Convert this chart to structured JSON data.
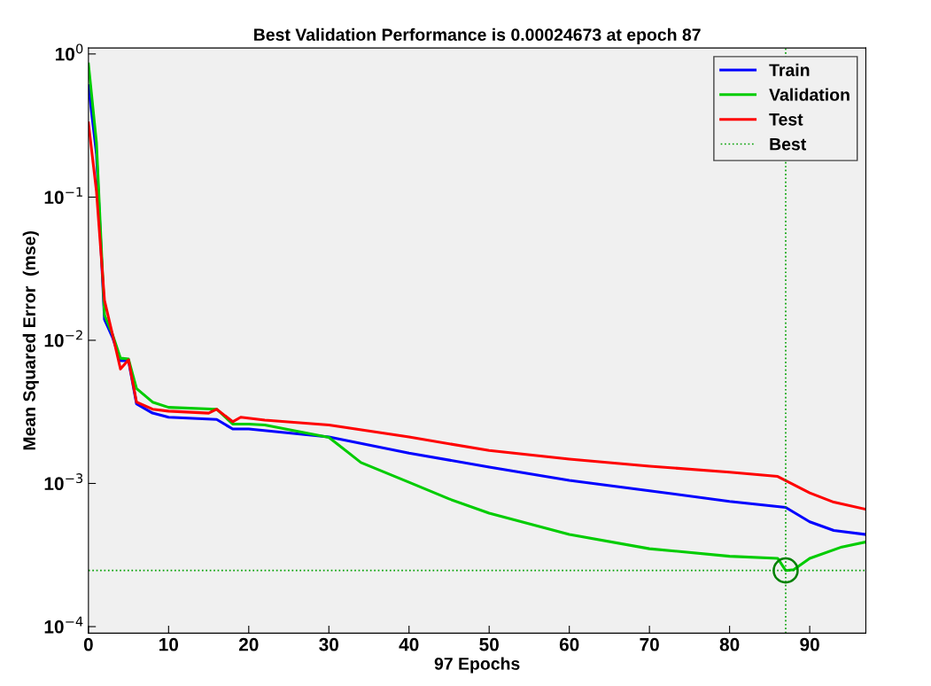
{
  "chart_data": {
    "type": "line",
    "title": "Best Validation Performance is 0.00024673 at epoch 87",
    "xlabel": "97 Epochs",
    "ylabel": "Mean Squared Error  (mse)",
    "log": "y",
    "grid": false,
    "legend": "top right",
    "xlim": [
      0,
      97
    ],
    "xticks": [
      0,
      10,
      20,
      30,
      40,
      50,
      60,
      70,
      80,
      90
    ],
    "ylim": [
      9e-05,
      1.1
    ],
    "yticks": [
      {
        "value": 1,
        "label": "10$^{0}$"
      },
      {
        "value": 0.1,
        "label": "10$^{−1}$"
      },
      {
        "value": 0.01,
        "label": "10$^{−2}$"
      },
      {
        "value": 0.001,
        "label": "10$^{−3}$"
      },
      {
        "value": 0.0001,
        "label": "10$^{−4}$"
      }
    ],
    "series": [
      {
        "name": "Train",
        "color": "#0000ff",
        "x": [
          0,
          1,
          2,
          3,
          4,
          5,
          6,
          8,
          10,
          16,
          18,
          20,
          30,
          40,
          50,
          60,
          70,
          80,
          87,
          90,
          93,
          97
        ],
        "values": [
          0.6,
          0.2,
          0.014,
          0.0105,
          0.0072,
          0.0072,
          0.0036,
          0.0031,
          0.0029,
          0.0028,
          0.0024,
          0.0024,
          0.00211,
          0.00163,
          0.0013,
          0.00105,
          0.00089,
          0.00075,
          0.00068,
          0.00054,
          0.00047,
          0.00044
        ]
      },
      {
        "name": "Validation",
        "color": "#00cc00",
        "x": [
          0,
          1,
          2,
          3,
          4,
          5,
          6,
          8,
          10,
          16,
          18,
          20,
          22,
          30,
          34,
          40,
          45,
          50,
          60,
          70,
          80,
          86,
          87,
          88,
          90,
          94,
          97
        ],
        "values": [
          0.85,
          0.24,
          0.015,
          0.011,
          0.0075,
          0.0074,
          0.0046,
          0.0037,
          0.0034,
          0.0033,
          0.0026,
          0.0026,
          0.00256,
          0.0021,
          0.0014,
          0.00102,
          0.00078,
          0.00062,
          0.00044,
          0.00035,
          0.00031,
          0.0003,
          0.00024673,
          0.00025,
          0.0003,
          0.00036,
          0.00039
        ]
      },
      {
        "name": "Test",
        "color": "#ff0000",
        "x": [
          0,
          1,
          2,
          3,
          4,
          5,
          6,
          8,
          10,
          15,
          16,
          18,
          19,
          22,
          30,
          40,
          50,
          60,
          70,
          80,
          86,
          90,
          93,
          97
        ],
        "values": [
          0.33,
          0.11,
          0.019,
          0.011,
          0.0063,
          0.0073,
          0.0037,
          0.0033,
          0.0032,
          0.0031,
          0.0033,
          0.0027,
          0.0029,
          0.00277,
          0.00256,
          0.00211,
          0.0017,
          0.00148,
          0.00132,
          0.0012,
          0.00112,
          0.00086,
          0.00074,
          0.00066
        ]
      },
      {
        "type": "scatter",
        "marker": "circle",
        "color": "#008000",
        "x": [
          87
        ],
        "values": [
          0.00024673
        ]
      }
    ],
    "ref_lines": [
      {
        "axis": "x",
        "value": 87,
        "label": "Best",
        "color": "#00a000",
        "line_style": "dotted"
      },
      {
        "axis": "y",
        "value": 0.00024673,
        "color": "#00a000",
        "line_style": "dotted"
      }
    ]
  }
}
